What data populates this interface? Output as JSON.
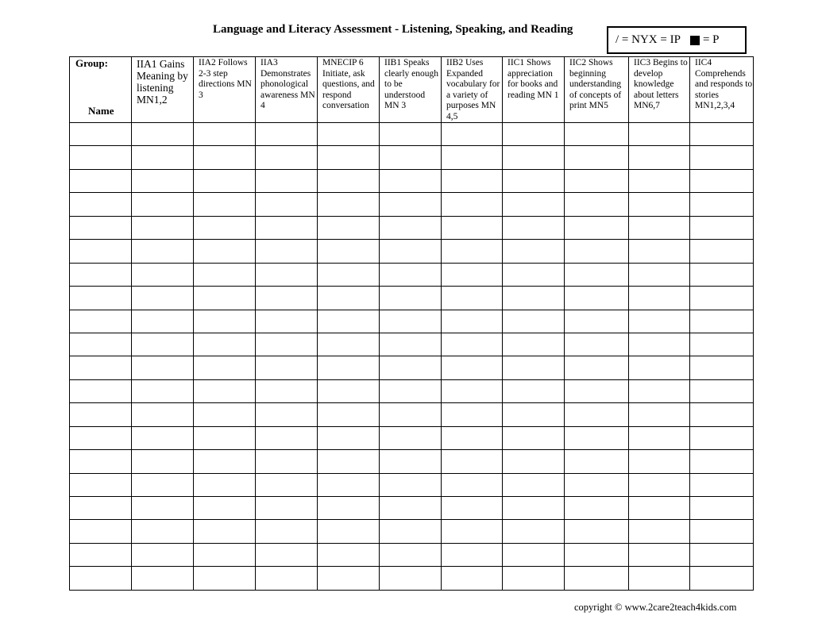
{
  "title": "Language and Literacy Assessment - Listening, Speaking, and Reading",
  "legend": {
    "ny": "/ = NY",
    "ip": "X = IP",
    "p": "= P"
  },
  "table": {
    "group_label": "Group:",
    "name_label": "Name",
    "columns": [
      {
        "label": "IIA1 Gains Meaning by listening MN1,2"
      },
      {
        "label": "IIA2 Follows 2-3 step directions MN 3"
      },
      {
        "label": "IIA3 Demonstrates phonological awareness MN 4"
      },
      {
        "label": "MNECIP 6 Initiate, ask questions, and respond conversation"
      },
      {
        "label": "IIB1 Speaks clearly enough to be understood MN 3"
      },
      {
        "label": "IIB2 Uses Expanded vocabulary for a variety of purposes MN 4,5"
      },
      {
        "label": "IIC1 Shows appreciation for books and reading MN 1"
      },
      {
        "label": "IIC2 Shows beginning understanding of concepts of print MN5"
      },
      {
        "label": "IIC3 Begins to develop knowledge about letters MN6,7"
      },
      {
        "label": "IIC4 Comprehends and responds to stories MN1,2,3,4"
      }
    ]
  },
  "copyright": "copyright © www.2care2teach4kids.com"
}
